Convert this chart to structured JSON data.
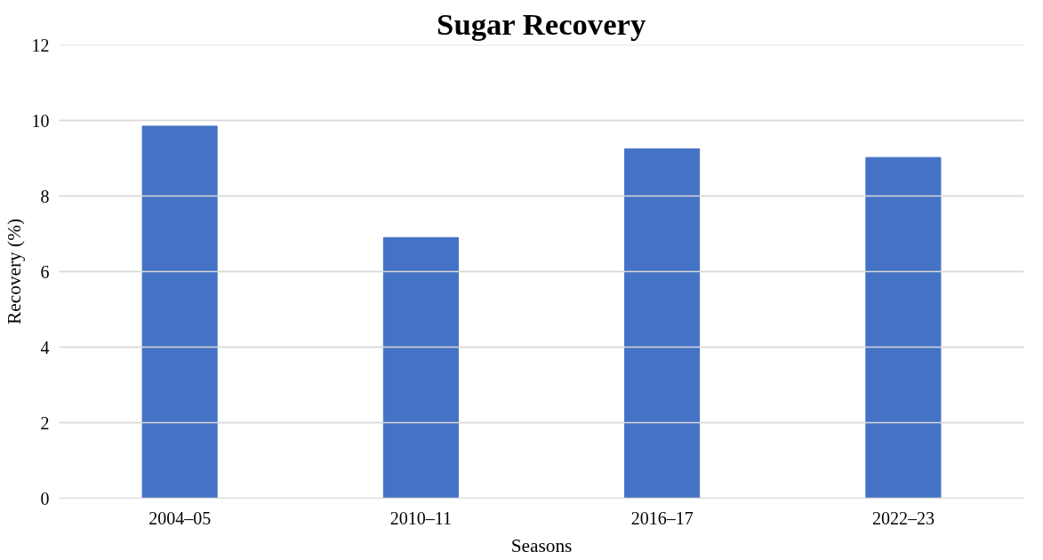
{
  "chart_data": {
    "type": "bar",
    "title": "Sugar Recovery",
    "xlabel": "Seasons",
    "ylabel": "Recovery (%)",
    "categories": [
      "2004–05",
      "2010–11",
      "2016–17",
      "2022–23"
    ],
    "values": [
      9.85,
      6.9,
      9.25,
      9.02
    ],
    "color": "#4472c4",
    "ylim": [
      0,
      12
    ],
    "yticks": [
      0,
      2,
      4,
      6,
      8,
      10,
      12
    ],
    "grid": "y"
  }
}
